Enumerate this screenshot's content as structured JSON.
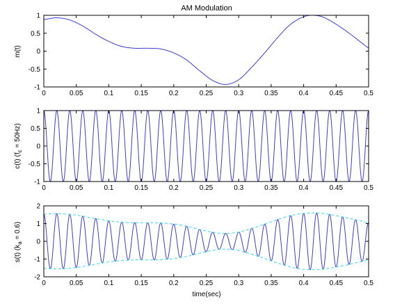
{
  "colors": {
    "signal": "#3b3bd8",
    "envelope": "#2fd7ee",
    "axes": "#000000",
    "background": "#ffffff"
  },
  "chart_data": [
    {
      "type": "line",
      "title": "AM Modulation",
      "ylabel": "m(t)",
      "xlabel": "",
      "xlim": [
        0,
        0.5
      ],
      "ylim": [
        -1,
        1
      ],
      "xticks": [
        0,
        0.05,
        0.1,
        0.15,
        0.2,
        0.25,
        0.3,
        0.35,
        0.4,
        0.45,
        0.5
      ],
      "yticks": [
        -1,
        -0.5,
        0,
        0.5,
        1
      ],
      "grid": false,
      "series": [
        {
          "points": [
            [
              0,
              0.88
            ],
            [
              0.02,
              0.93
            ],
            [
              0.04,
              0.87
            ],
            [
              0.06,
              0.7
            ],
            [
              0.08,
              0.47
            ],
            [
              0.1,
              0.27
            ],
            [
              0.12,
              0.13
            ],
            [
              0.14,
              0.08
            ],
            [
              0.16,
              0.08
            ],
            [
              0.18,
              0.06
            ],
            [
              0.2,
              -0.05
            ],
            [
              0.22,
              -0.25
            ],
            [
              0.24,
              -0.55
            ],
            [
              0.26,
              -0.82
            ],
            [
              0.28,
              -0.93
            ],
            [
              0.3,
              -0.8
            ],
            [
              0.32,
              -0.45
            ],
            [
              0.34,
              -0.05
            ],
            [
              0.36,
              0.38
            ],
            [
              0.38,
              0.75
            ],
            [
              0.4,
              0.96
            ],
            [
              0.415,
              1.0
            ],
            [
              0.43,
              0.95
            ],
            [
              0.45,
              0.75
            ],
            [
              0.47,
              0.5
            ],
            [
              0.49,
              0.22
            ],
            [
              0.5,
              0.08
            ]
          ]
        }
      ]
    },
    {
      "type": "line",
      "title": "",
      "ylabel_main": "c(t) (f",
      "ylabel_sub": "c",
      "ylabel_tail": " = 50Hz)",
      "xlabel": "",
      "xlim": [
        0,
        0.5
      ],
      "ylim": [
        -1,
        1
      ],
      "xticks": [
        0,
        0.05,
        0.1,
        0.15,
        0.2,
        0.25,
        0.3,
        0.35,
        0.4,
        0.45,
        0.5
      ],
      "yticks": [
        -1,
        -0.5,
        0,
        0.5,
        1
      ],
      "grid": false,
      "carrier_frequency_hz": 50
    },
    {
      "type": "line",
      "title": "",
      "ylabel_main": "s(t) (k",
      "ylabel_sub": "a",
      "ylabel_tail": " = 0.6)",
      "xlabel": "time(sec)",
      "xlim": [
        0,
        0.5
      ],
      "ylim": [
        -2,
        2
      ],
      "xticks": [
        0,
        0.05,
        0.1,
        0.15,
        0.2,
        0.25,
        0.3,
        0.35,
        0.4,
        0.45,
        0.5
      ],
      "yticks": [
        -2,
        -1,
        0,
        1,
        2
      ],
      "grid": false,
      "modulation_index": 0.6,
      "envelope_style": "dashed"
    }
  ]
}
